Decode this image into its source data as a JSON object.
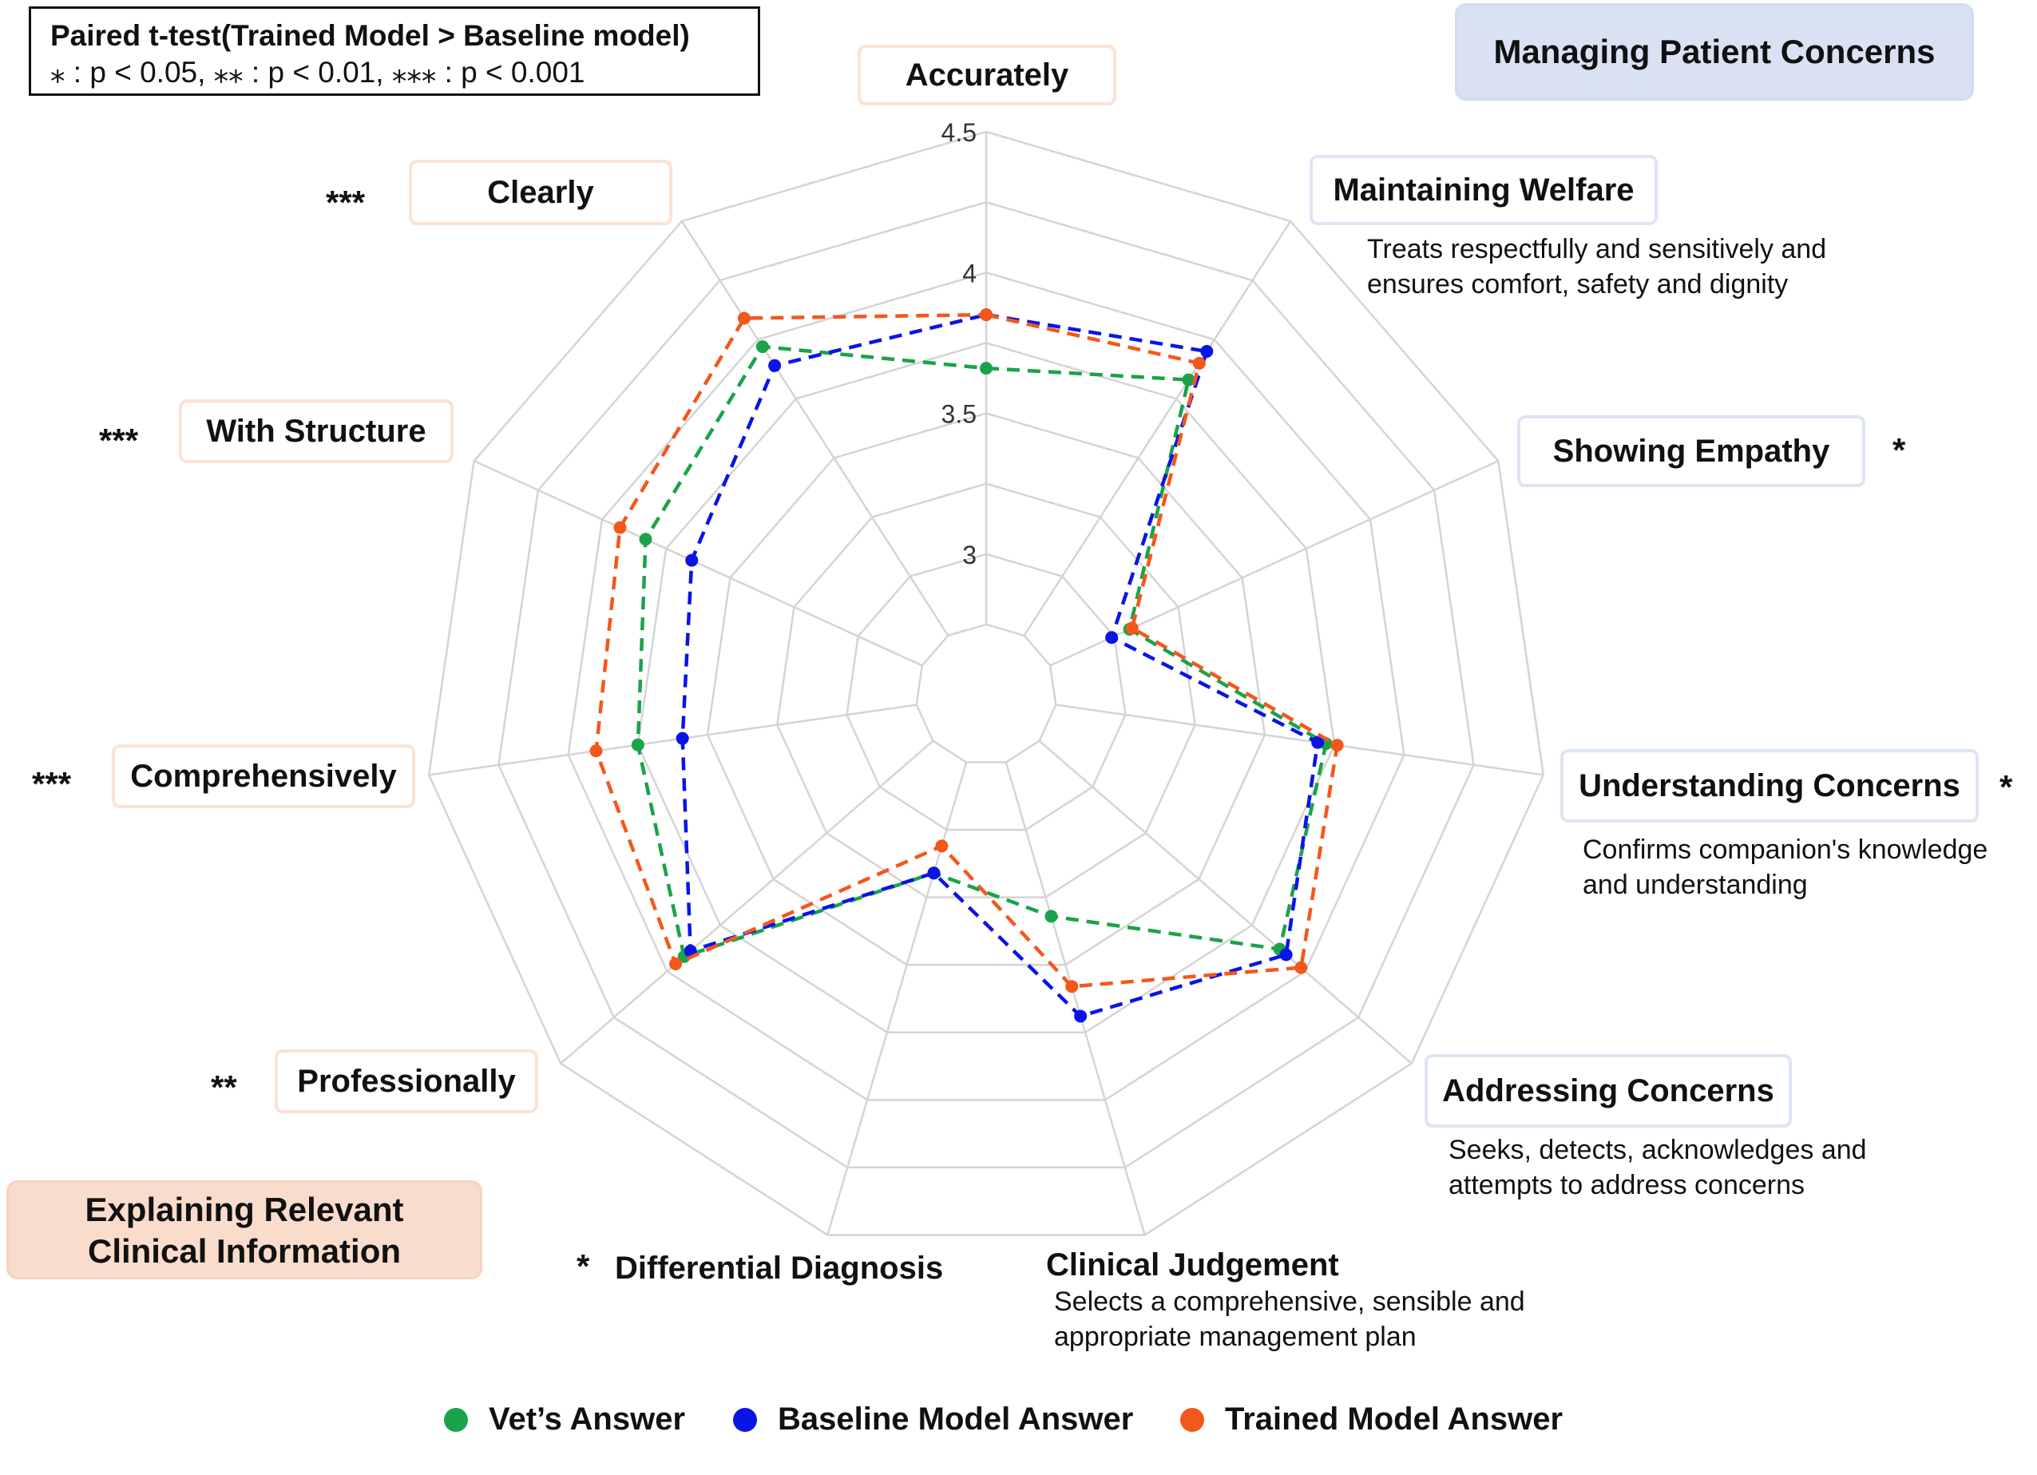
{
  "header": {
    "title": "Paired t-test(Trained Model > Baseline model)",
    "significance": "⁎ : p < 0.05, ⁎⁎ : p < 0.01, ⁎⁎⁎ : p < 0.001"
  },
  "groups": {
    "patient": "Managing Patient Concerns",
    "clinical": "Explaining Relevant Clinical Information"
  },
  "axes": [
    {
      "label": "Accurately",
      "sig": "",
      "desc": ""
    },
    {
      "label": "Maintaining Welfare",
      "sig": "",
      "desc": "Treats respectfully and sensitively and ensures comfort, safety and dignity"
    },
    {
      "label": "Showing Empathy",
      "sig": "*",
      "desc": ""
    },
    {
      "label": "Understanding Concerns",
      "sig": "*",
      "desc": "Confirms companion's knowledge and understanding"
    },
    {
      "label": "Addressing Concerns",
      "sig": "",
      "desc": "Seeks, detects, acknowledges and attempts to address concerns"
    },
    {
      "label": "Clinical Judgement",
      "sig": "",
      "desc": "Selects a comprehensive, sensible and appropriate management plan"
    },
    {
      "label": "Differential Diagnosis",
      "sig": "*",
      "desc": ""
    },
    {
      "label": "Professionally",
      "sig": "**",
      "desc": ""
    },
    {
      "label": "Comprehensively",
      "sig": "***",
      "desc": ""
    },
    {
      "label": "With Structure",
      "sig": "***",
      "desc": ""
    },
    {
      "label": "Clearly",
      "sig": "***",
      "desc": ""
    }
  ],
  "desc_lines": {
    "welfare": [
      "Treats respectfully and sensitively and",
      "ensures comfort, safety and dignity"
    ],
    "understanding": [
      "Confirms companion's knowledge",
      "and understanding"
    ],
    "addressing": [
      "Seeks, detects, acknowledges and",
      "attempts to address concerns"
    ],
    "judgement": [
      "Selects a comprehensive, sensible and",
      "appropriate management  plan"
    ],
    "clinical_group": [
      "Explaining Relevant",
      "Clinical Information"
    ]
  },
  "chart_data": {
    "type": "radar",
    "categories": [
      "Accurately",
      "Maintaining Welfare",
      "Showing Empathy",
      "Understanding Concerns",
      "Addressing Concerns",
      "Clinical Judgement",
      "Differential Diagnosis",
      "Professionally",
      "Comprehensively",
      "With Structure",
      "Clearly"
    ],
    "rlim": [
      2.5,
      4.5
    ],
    "ticks": [
      "3",
      "3.5",
      "4",
      "4.5"
    ],
    "tick_values": [
      3,
      3.5,
      4,
      4.5
    ],
    "grid": true,
    "legend_position": "bottom",
    "series": [
      {
        "name": "Vet’s Answer",
        "color": "#1aa34a",
        "values": [
          3.66,
          3.83,
          3.06,
          3.72,
          3.88,
          3.32,
          3.16,
          3.92,
          3.75,
          3.83,
          3.97
        ]
      },
      {
        "name": "Baseline Model Answer",
        "color": "#0a14e6",
        "values": [
          3.85,
          3.95,
          2.99,
          3.69,
          3.91,
          3.69,
          3.16,
          3.89,
          3.59,
          3.65,
          3.89
        ]
      },
      {
        "name": "Trained Model Answer",
        "color": "#f4571b",
        "values": [
          3.85,
          3.9,
          3.07,
          3.76,
          3.98,
          3.58,
          3.06,
          3.96,
          3.9,
          3.93,
          4.09
        ]
      }
    ]
  }
}
